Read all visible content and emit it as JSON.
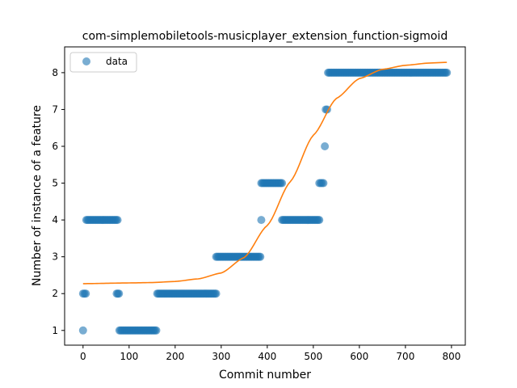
{
  "chart_data": {
    "type": "scatter",
    "title": "com-simplemobiletools-musicplayer_extension_function-sigmoid",
    "xlabel": "Commit number",
    "ylabel": "Number of instance of a feature",
    "xlim": [
      -40,
      830
    ],
    "ylim": [
      0.6,
      8.7
    ],
    "xticks": [
      0,
      100,
      200,
      300,
      400,
      500,
      600,
      700,
      800
    ],
    "yticks": [
      1,
      2,
      3,
      4,
      5,
      6,
      7,
      8
    ],
    "grid": false,
    "legend": {
      "position": "upper-left",
      "entries": [
        "data"
      ]
    },
    "colors": {
      "data": "#1f77b4",
      "fit": "#ff7f0e"
    },
    "series": [
      {
        "name": "data",
        "kind": "points",
        "segments": [
          {
            "y": 1,
            "x_from": 0,
            "x_to": 0
          },
          {
            "y": 2,
            "x_from": 0,
            "x_to": 6
          },
          {
            "y": 4,
            "x_from": 7,
            "x_to": 75
          },
          {
            "y": 2,
            "x_from": 73,
            "x_to": 78
          },
          {
            "y": 1,
            "x_from": 79,
            "x_to": 159
          },
          {
            "y": 2,
            "x_from": 161,
            "x_to": 289
          },
          {
            "y": 3,
            "x_from": 289,
            "x_to": 385
          },
          {
            "y": 4,
            "x_from": 387,
            "x_to": 387
          },
          {
            "y": 5,
            "x_from": 387,
            "x_to": 432
          },
          {
            "y": 4,
            "x_from": 432,
            "x_to": 513
          },
          {
            "y": 5,
            "x_from": 513,
            "x_to": 522
          },
          {
            "y": 6,
            "x_from": 525,
            "x_to": 525
          },
          {
            "y": 7,
            "x_from": 527,
            "x_to": 530
          },
          {
            "y": 8,
            "x_from": 532,
            "x_to": 790
          }
        ]
      },
      {
        "kind": "sigmoid-fit",
        "x_from": 0,
        "x_to": 790,
        "samples": [
          [
            0,
            2.27
          ],
          [
            100,
            2.29
          ],
          [
            150,
            2.3
          ],
          [
            200,
            2.33
          ],
          [
            250,
            2.4
          ],
          [
            300,
            2.56
          ],
          [
            350,
            2.98
          ],
          [
            400,
            3.85
          ],
          [
            450,
            5.04
          ],
          [
            500,
            6.3
          ],
          [
            550,
            7.3
          ],
          [
            600,
            7.84
          ],
          [
            650,
            8.09
          ],
          [
            700,
            8.2
          ],
          [
            750,
            8.26
          ],
          [
            790,
            8.28
          ]
        ]
      }
    ]
  }
}
